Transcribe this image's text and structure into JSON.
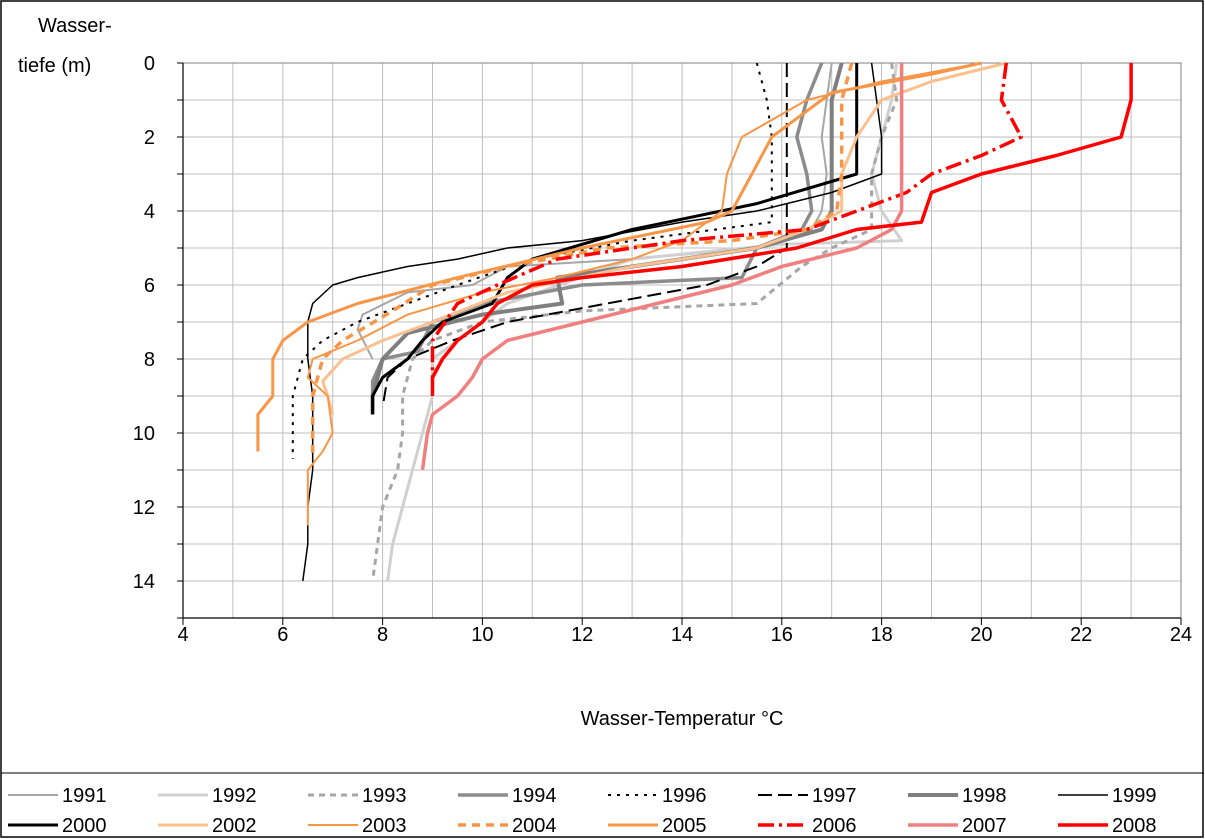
{
  "chart_data": {
    "type": "line",
    "xlabel": "Wasser-Temperatur °C",
    "ylabel": [
      "Wasser-",
      "tiefe (m)"
    ],
    "xlim": [
      4,
      24
    ],
    "ylim": [
      0,
      15
    ],
    "y_inverted": true,
    "xticks": [
      "4",
      "6",
      "8",
      "10",
      "12",
      "14",
      "16",
      "18",
      "20",
      "22",
      "24"
    ],
    "yticks": [
      "0",
      "2",
      "4",
      "6",
      "8",
      "10",
      "12",
      "14"
    ],
    "grid": true,
    "legend_position": "bottom",
    "series": [
      {
        "name": "1991",
        "color": "#a6a6a6",
        "width": 2,
        "dash": "",
        "points": [
          [
            17.0,
            0
          ],
          [
            16.9,
            1
          ],
          [
            16.8,
            2
          ],
          [
            16.9,
            3
          ],
          [
            16.8,
            4
          ],
          [
            16.6,
            4.5
          ],
          [
            15.5,
            5
          ],
          [
            13,
            5.3
          ],
          [
            10.5,
            5.5
          ],
          [
            9.8,
            6
          ],
          [
            8.5,
            6.2
          ],
          [
            7.6,
            6.8
          ],
          [
            7.5,
            7.2
          ],
          [
            7.8,
            8
          ]
        ]
      },
      {
        "name": "1992",
        "color": "#d0d0d0",
        "width": 3,
        "dash": "",
        "points": [
          [
            18.3,
            0
          ],
          [
            18.2,
            1
          ],
          [
            18.0,
            2
          ],
          [
            17.8,
            3
          ],
          [
            18.0,
            4
          ],
          [
            18.4,
            4.8
          ],
          [
            16,
            4.9
          ],
          [
            13,
            5.3
          ],
          [
            10.5,
            6.5
          ],
          [
            9.5,
            7.5
          ],
          [
            9.0,
            8
          ],
          [
            9.0,
            9
          ],
          [
            8.8,
            10
          ],
          [
            8.6,
            11
          ],
          [
            8.4,
            12
          ],
          [
            8.3,
            12.5
          ],
          [
            8.2,
            13
          ],
          [
            8.1,
            14
          ]
        ]
      },
      {
        "name": "1993",
        "color": "#a6a6a6",
        "width": 3,
        "dash": "6,5",
        "points": [
          [
            18.2,
            0
          ],
          [
            18.3,
            1
          ],
          [
            18.0,
            2
          ],
          [
            17.8,
            3
          ],
          [
            17.8,
            4
          ],
          [
            17.8,
            4.5
          ],
          [
            17.0,
            5
          ],
          [
            16.4,
            5.5
          ],
          [
            15.5,
            6.5
          ],
          [
            12,
            6.7
          ],
          [
            10,
            7
          ],
          [
            9.0,
            7.5
          ],
          [
            8.6,
            8
          ],
          [
            8.4,
            9
          ],
          [
            8.4,
            10
          ],
          [
            8.3,
            11
          ],
          [
            8.0,
            12
          ],
          [
            7.9,
            13
          ],
          [
            7.8,
            14
          ]
        ]
      },
      {
        "name": "1994",
        "color": "#8c8c8c",
        "width": 3.5,
        "dash": "",
        "points": [
          [
            16.8,
            0
          ],
          [
            16.5,
            1
          ],
          [
            16.3,
            2
          ],
          [
            16.5,
            3
          ],
          [
            16.6,
            4
          ],
          [
            16.4,
            4.5
          ],
          [
            15.5,
            5
          ],
          [
            15.2,
            5.8
          ],
          [
            12,
            6
          ],
          [
            10,
            6.5
          ],
          [
            9.0,
            7
          ],
          [
            8.7,
            7.8
          ],
          [
            8.0,
            8
          ],
          [
            7.8,
            8.6
          ],
          [
            7.8,
            9.5
          ]
        ]
      },
      {
        "name": "1996",
        "color": "#000000",
        "width": 2,
        "dash": "3,6",
        "points": [
          [
            15.5,
            0
          ],
          [
            15.7,
            1
          ],
          [
            15.8,
            2
          ],
          [
            15.8,
            3
          ],
          [
            15.8,
            4
          ],
          [
            15.8,
            4.3
          ],
          [
            13,
            4.8
          ],
          [
            11,
            5.3
          ],
          [
            9.5,
            6
          ],
          [
            8.5,
            6.5
          ],
          [
            7.5,
            7
          ],
          [
            6.8,
            7.5
          ],
          [
            6.4,
            8
          ],
          [
            6.3,
            8.5
          ],
          [
            6.2,
            9
          ],
          [
            6.2,
            10
          ],
          [
            6.2,
            10.7
          ]
        ]
      },
      {
        "name": "1997",
        "color": "#000000",
        "width": 2,
        "dash": "14,6",
        "points": [
          [
            16.1,
            0
          ],
          [
            16.1,
            1
          ],
          [
            16.1,
            2
          ],
          [
            16.1,
            3
          ],
          [
            16.1,
            4
          ],
          [
            16.1,
            5
          ],
          [
            15.5,
            5.5
          ],
          [
            14.5,
            6
          ],
          [
            12.5,
            6.5
          ],
          [
            10.5,
            7
          ],
          [
            9.4,
            7.5
          ],
          [
            8.5,
            8
          ],
          [
            8.1,
            8.5
          ],
          [
            8.0,
            9.3
          ]
        ]
      },
      {
        "name": "1998",
        "color": "#7f7f7f",
        "width": 4,
        "dash": "",
        "points": [
          [
            17.2,
            0
          ],
          [
            17.0,
            1
          ],
          [
            17.0,
            2
          ],
          [
            17.0,
            3
          ],
          [
            17.0,
            4
          ],
          [
            16.8,
            4.5
          ],
          [
            15.5,
            5
          ],
          [
            13,
            5.5
          ],
          [
            11.5,
            5.8
          ],
          [
            11.6,
            6.5
          ],
          [
            10,
            6.8
          ],
          [
            8.5,
            7.3
          ],
          [
            8.0,
            8
          ],
          [
            7.8,
            9
          ],
          [
            7.8,
            9.5
          ]
        ]
      },
      {
        "name": "1999",
        "color": "#000000",
        "width": 1.5,
        "dash": "",
        "points": [
          [
            17.8,
            0
          ],
          [
            17.9,
            1
          ],
          [
            18.0,
            2
          ],
          [
            18.0,
            3
          ],
          [
            17.0,
            3.5
          ],
          [
            15.5,
            4
          ],
          [
            14,
            4.3
          ],
          [
            12,
            4.8
          ],
          [
            10.5,
            5
          ],
          [
            9.5,
            5.3
          ],
          [
            8.5,
            5.5
          ],
          [
            7.5,
            5.8
          ],
          [
            7.0,
            6
          ],
          [
            6.6,
            6.5
          ],
          [
            6.5,
            7
          ],
          [
            6.5,
            8
          ],
          [
            6.6,
            9
          ],
          [
            6.6,
            10
          ],
          [
            6.6,
            11
          ],
          [
            6.5,
            12
          ],
          [
            6.5,
            13
          ],
          [
            6.4,
            14
          ]
        ]
      },
      {
        "name": "2000",
        "color": "#000000",
        "width": 3,
        "dash": "",
        "points": [
          [
            17.5,
            0
          ],
          [
            17.5,
            1
          ],
          [
            17.5,
            2
          ],
          [
            17.5,
            3
          ],
          [
            15.5,
            3.8
          ],
          [
            13,
            4.5
          ],
          [
            11,
            5.3
          ],
          [
            10.5,
            5.8
          ],
          [
            10.2,
            6.5
          ],
          [
            9.2,
            7
          ],
          [
            8.8,
            7.5
          ],
          [
            8.5,
            8
          ],
          [
            8.0,
            8.5
          ],
          [
            7.8,
            9
          ],
          [
            7.8,
            9.5
          ]
        ]
      },
      {
        "name": "2002",
        "color": "#fac090",
        "width": 3,
        "dash": "",
        "points": [
          [
            20.5,
            0
          ],
          [
            19,
            0.5
          ],
          [
            18.0,
            1
          ],
          [
            17.5,
            2
          ],
          [
            17.2,
            3
          ],
          [
            17.2,
            4
          ],
          [
            16.5,
            4.5
          ],
          [
            15.5,
            5
          ],
          [
            13,
            5.5
          ],
          [
            10.5,
            6.2
          ],
          [
            9.0,
            7
          ],
          [
            8.0,
            7.5
          ],
          [
            7.2,
            8
          ],
          [
            6.8,
            8.6
          ],
          [
            6.9,
            9
          ],
          [
            7.0,
            9.5
          ]
        ]
      },
      {
        "name": "2003",
        "color": "#f79646",
        "width": 2,
        "dash": "",
        "points": [
          [
            20,
            0
          ],
          [
            18,
            0.5
          ],
          [
            16.5,
            1
          ],
          [
            15.2,
            2
          ],
          [
            14.9,
            3
          ],
          [
            14.8,
            4
          ],
          [
            14,
            4.8
          ],
          [
            13,
            5.3
          ],
          [
            11.5,
            5.8
          ],
          [
            10,
            6.2
          ],
          [
            8.5,
            6.8
          ],
          [
            7.5,
            7.5
          ],
          [
            6.6,
            8
          ],
          [
            6.5,
            8.5
          ],
          [
            6.9,
            9
          ],
          [
            7.0,
            10
          ],
          [
            6.8,
            10.5
          ],
          [
            6.5,
            11
          ],
          [
            6.5,
            12
          ],
          [
            6.5,
            12.5
          ]
        ]
      },
      {
        "name": "2004",
        "color": "#f79646",
        "width": 3.5,
        "dash": "8,6",
        "points": [
          [
            17.4,
            0
          ],
          [
            17.2,
            1
          ],
          [
            17.2,
            2
          ],
          [
            17.2,
            3
          ],
          [
            17.1,
            4
          ],
          [
            16.5,
            4.5
          ],
          [
            15,
            4.8
          ],
          [
            12.5,
            5
          ],
          [
            10.5,
            5.5
          ],
          [
            9.0,
            6
          ],
          [
            8.2,
            6.7
          ],
          [
            7.2,
            7.5
          ],
          [
            6.8,
            8
          ],
          [
            6.7,
            8.5
          ],
          [
            6.6,
            9
          ],
          [
            6.6,
            10
          ],
          [
            6.6,
            10.7
          ]
        ]
      },
      {
        "name": "2005",
        "color": "#f79646",
        "width": 3,
        "dash": "",
        "points": [
          [
            20.0,
            0
          ],
          [
            19,
            0.3
          ],
          [
            17,
            0.8
          ],
          [
            15.8,
            2
          ],
          [
            15.4,
            3
          ],
          [
            15,
            4
          ],
          [
            14.5,
            4.3
          ],
          [
            12,
            5
          ],
          [
            9.5,
            5.8
          ],
          [
            7.5,
            6.5
          ],
          [
            6.5,
            7
          ],
          [
            6.0,
            7.5
          ],
          [
            5.8,
            8
          ],
          [
            5.8,
            9
          ],
          [
            5.5,
            9.5
          ],
          [
            5.5,
            10
          ],
          [
            5.5,
            10.5
          ]
        ]
      },
      {
        "name": "2006",
        "color": "#ff0000",
        "width": 3.5,
        "dash": "16,5,3,5",
        "points": [
          [
            20.5,
            0
          ],
          [
            20.4,
            1
          ],
          [
            20.8,
            2
          ],
          [
            20,
            2.5
          ],
          [
            19.0,
            3
          ],
          [
            18.5,
            3.5
          ],
          [
            17.5,
            4
          ],
          [
            16.5,
            4.5
          ],
          [
            14,
            4.8
          ],
          [
            11.5,
            5.3
          ],
          [
            10.3,
            6
          ],
          [
            9.5,
            6.5
          ],
          [
            9.0,
            7.5
          ],
          [
            9.0,
            8.5
          ]
        ]
      },
      {
        "name": "2007",
        "color": "#f08080",
        "width": 3.5,
        "dash": "",
        "points": [
          [
            18.4,
            0
          ],
          [
            18.4,
            1
          ],
          [
            18.4,
            2
          ],
          [
            18.4,
            3
          ],
          [
            18.4,
            4
          ],
          [
            18.2,
            4.5
          ],
          [
            17.5,
            5
          ],
          [
            16,
            5.5
          ],
          [
            15,
            6
          ],
          [
            13.5,
            6.5
          ],
          [
            12,
            7
          ],
          [
            10.5,
            7.5
          ],
          [
            10.0,
            8
          ],
          [
            9.8,
            8.5
          ],
          [
            9.5,
            9
          ],
          [
            9.0,
            9.5
          ],
          [
            8.9,
            10
          ],
          [
            8.8,
            11
          ]
        ]
      },
      {
        "name": "2008",
        "color": "#ff0000",
        "width": 3.5,
        "dash": "",
        "points": [
          [
            23.0,
            0
          ],
          [
            23.0,
            1
          ],
          [
            22.8,
            2
          ],
          [
            21.5,
            2.5
          ],
          [
            20,
            3
          ],
          [
            19.0,
            3.5
          ],
          [
            18.8,
            4.3
          ],
          [
            17.5,
            4.5
          ],
          [
            16.3,
            5
          ],
          [
            14,
            5.5
          ],
          [
            12,
            5.8
          ],
          [
            11,
            6
          ],
          [
            10.3,
            6.5
          ],
          [
            10.0,
            7
          ],
          [
            9.5,
            7.5
          ],
          [
            9.2,
            8
          ],
          [
            9.0,
            8.5
          ],
          [
            9.0,
            9
          ]
        ]
      }
    ]
  }
}
